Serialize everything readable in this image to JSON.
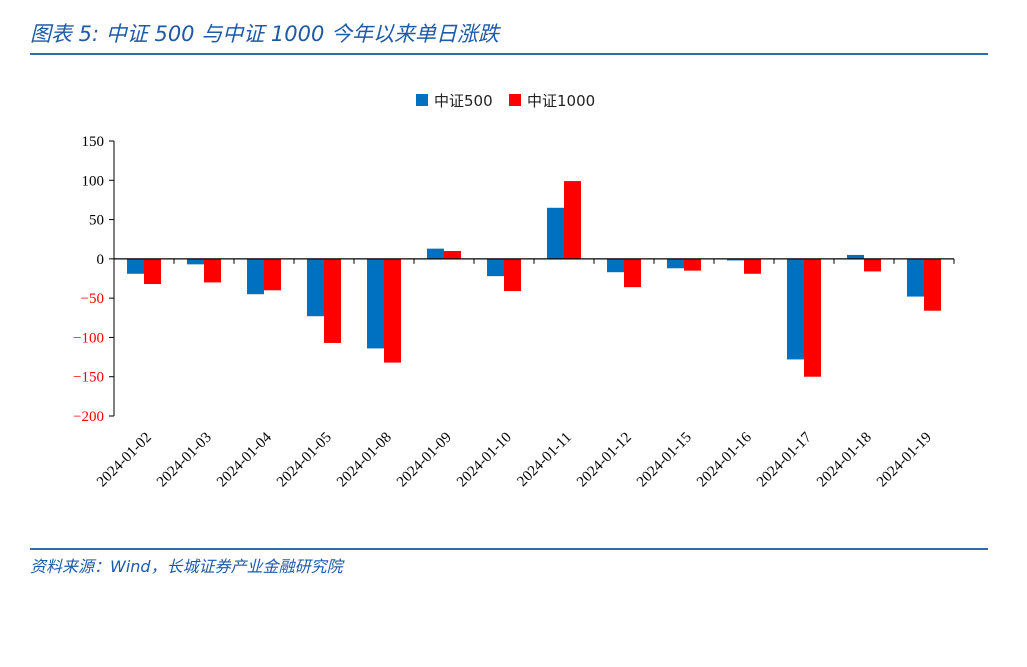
{
  "title": "图表 5:  中证 500 与中证 1000 今年以来单日涨跌",
  "source": "资料来源：Wind，长城证券产业金融研究院",
  "colors": {
    "series1": "#0070c0",
    "series2": "#ff0000",
    "negative_tick": "#ff0000",
    "positive_tick": "#000000",
    "rule": "#2f6db3",
    "title": "#1f5aa6"
  },
  "chart_data": {
    "type": "bar",
    "categories": [
      "2024-01-02",
      "2024-01-03",
      "2024-01-04",
      "2024-01-05",
      "2024-01-08",
      "2024-01-09",
      "2024-01-10",
      "2024-01-11",
      "2024-01-12",
      "2024-01-15",
      "2024-01-16",
      "2024-01-17",
      "2024-01-18",
      "2024-01-19"
    ],
    "series": [
      {
        "name": "中证500",
        "values": [
          -19,
          -7,
          -45,
          -73,
          -114,
          13,
          -22,
          65,
          -17,
          -12,
          -2,
          -128,
          5,
          -48
        ]
      },
      {
        "name": "中证1000",
        "values": [
          -32,
          -30,
          -40,
          -107,
          -132,
          10,
          -41,
          99,
          -36,
          -15,
          -19,
          -150,
          -16,
          -66
        ]
      }
    ],
    "ylim": [
      -200,
      150
    ],
    "yticks": [
      150,
      100,
      50,
      0,
      -50,
      -100,
      -150,
      -200
    ],
    "ytick_labels": [
      "150",
      "100",
      "50",
      "0",
      "−50",
      "−100",
      "−150",
      "−200"
    ],
    "grid": false,
    "legend_position": "top-center",
    "xlabel": "",
    "ylabel": ""
  }
}
